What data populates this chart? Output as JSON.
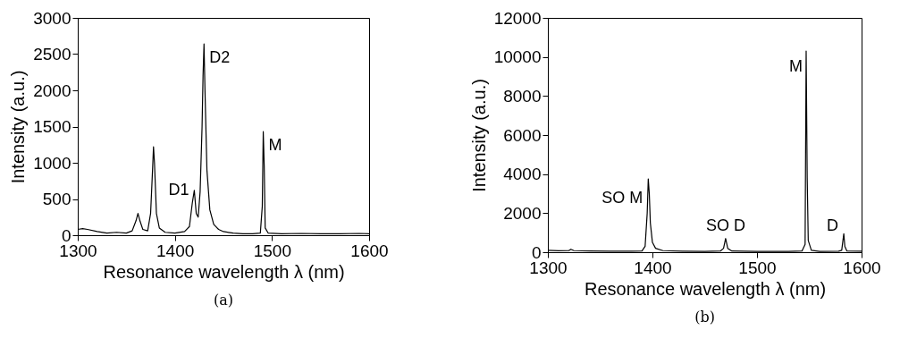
{
  "chart_data": [
    {
      "type": "line",
      "title": "(a)",
      "xlabel": "Resonance wavelength λ (nm)",
      "ylabel": "Intensity (a.u.)",
      "xlim": [
        1300,
        1600
      ],
      "xticks": [
        1300,
        1400,
        1500,
        1600
      ],
      "ylim": [
        0,
        3000
      ],
      "yticks": [
        0,
        500,
        1000,
        1500,
        2000,
        2500,
        3000
      ],
      "x": [
        1300,
        1305,
        1310,
        1320,
        1330,
        1340,
        1350,
        1356,
        1360,
        1362,
        1364,
        1367,
        1372,
        1375,
        1377,
        1378,
        1379,
        1381,
        1384,
        1390,
        1400,
        1410,
        1415,
        1418,
        1420,
        1422,
        1424,
        1426,
        1428,
        1429,
        1430,
        1431,
        1433,
        1436,
        1440,
        1445,
        1450,
        1460,
        1470,
        1480,
        1488,
        1490,
        1491,
        1492,
        1493,
        1496,
        1510,
        1530,
        1550,
        1570,
        1590,
        1600
      ],
      "series": [
        {
          "color": "#000000",
          "values": [
            80,
            90,
            80,
            50,
            30,
            40,
            30,
            60,
            200,
            300,
            200,
            80,
            60,
            300,
            900,
            1220,
            1000,
            300,
            100,
            40,
            30,
            50,
            120,
            450,
            620,
            300,
            250,
            600,
            1500,
            2200,
            2640,
            2000,
            900,
            350,
            150,
            80,
            50,
            30,
            20,
            20,
            30,
            400,
            1430,
            950,
            100,
            30,
            20,
            25,
            20,
            20,
            25,
            20
          ]
        }
      ],
      "annotations": [
        {
          "text": "D1",
          "x": 1420,
          "y": 620
        },
        {
          "text": "D2",
          "x": 1430,
          "y": 2640
        },
        {
          "text": "M",
          "x": 1491,
          "y": 1430
        }
      ]
    },
    {
      "type": "line",
      "title": "(b)",
      "xlabel": "Resonance wavelength λ (nm)",
      "ylabel": "Intensity (a.u.)",
      "xlim": [
        1300,
        1600
      ],
      "xticks": [
        1300,
        1400,
        1500,
        1600
      ],
      "ylim": [
        0,
        12000
      ],
      "yticks": [
        0,
        2000,
        4000,
        6000,
        8000,
        10000,
        12000
      ],
      "x": [
        1300,
        1310,
        1320,
        1322,
        1325,
        1340,
        1360,
        1380,
        1390,
        1393,
        1395,
        1396,
        1397,
        1398,
        1400,
        1403,
        1410,
        1430,
        1450,
        1465,
        1468,
        1470,
        1472,
        1476,
        1500,
        1530,
        1543,
        1546,
        1547,
        1548,
        1549,
        1552,
        1560,
        1578,
        1581,
        1583,
        1584,
        1586,
        1600
      ],
      "series": [
        {
          "color": "#000000",
          "values": [
            100,
            70,
            80,
            150,
            80,
            60,
            50,
            50,
            60,
            300,
            2000,
            3750,
            3000,
            1500,
            500,
            200,
            80,
            50,
            40,
            60,
            200,
            700,
            200,
            60,
            40,
            40,
            60,
            400,
            10300,
            3800,
            600,
            100,
            40,
            50,
            100,
            950,
            300,
            60,
            50
          ]
        }
      ],
      "annotations": [
        {
          "text": "SO M",
          "x": 1396,
          "y": 3750
        },
        {
          "text": "SO D",
          "x": 1470,
          "y": 700
        },
        {
          "text": "M",
          "x": 1547,
          "y": 10300
        },
        {
          "text": "D",
          "x": 1583,
          "y": 950
        }
      ]
    }
  ]
}
